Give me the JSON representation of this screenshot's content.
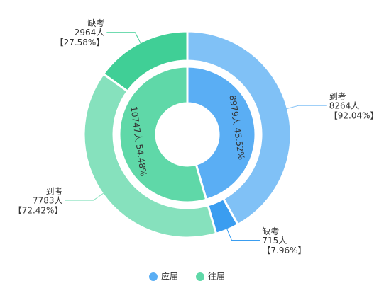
{
  "chart_data": {
    "type": "nested-pie",
    "inner": {
      "names": [
        "应届",
        "往届"
      ],
      "values": [
        8979,
        10747
      ],
      "value_labels": [
        "8979人 45.52%",
        "10747人 54.48%"
      ],
      "colors": [
        "#5aaef4",
        "#5fd8a8"
      ]
    },
    "outer": {
      "categories": [
        "到考",
        "缺考",
        "到考",
        "缺考"
      ],
      "values": [
        8264,
        715,
        7783,
        2964
      ],
      "value_labels": [
        "8264人",
        "715人",
        "7783人",
        "2964人"
      ],
      "percents": [
        92.04,
        7.96,
        72.42,
        27.58
      ],
      "percent_labels": [
        "【92.04%】",
        "【7.96%】",
        "【72.42%】",
        "【27.58%】"
      ],
      "colors": [
        "#80c1f6",
        "#3a9df0",
        "#86e1bd",
        "#40cf96"
      ]
    },
    "legend": "bottom"
  }
}
